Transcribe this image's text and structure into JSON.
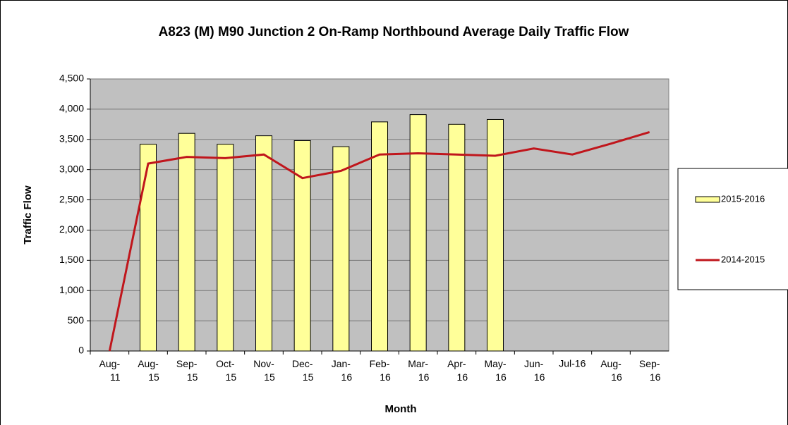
{
  "chart_data": {
    "type": "bar_line",
    "title": "A823 (M) M90 Junction 2 On-Ramp Northbound Average Daily Traffic Flow",
    "x_label": "Month",
    "y_label": "Traffic Flow",
    "categories": [
      "Aug-11",
      "Aug-15",
      "Sep-15",
      "Oct-15",
      "Nov-15",
      "Dec-15",
      "Jan-16",
      "Feb-16",
      "Mar-16",
      "Apr-16",
      "May-16",
      "Jun-16",
      "Jul-16",
      "Aug-16",
      "Sep-16"
    ],
    "series": [
      {
        "name": "2015-2016",
        "type": "bar",
        "color": "#ffff99",
        "values": [
          null,
          3420,
          3600,
          3420,
          3560,
          3480,
          3380,
          3790,
          3910,
          3750,
          3830,
          null,
          null,
          null,
          null
        ]
      },
      {
        "name": "2014-2015",
        "type": "line",
        "color": "#c0161c",
        "values": [
          0,
          3100,
          3210,
          3190,
          3250,
          2860,
          2980,
          3250,
          3270,
          3250,
          3230,
          3350,
          3250,
          3430,
          3620
        ]
      }
    ],
    "ylim": [
      0,
      4500
    ],
    "yticks": [
      0,
      500,
      {
        "value": 1000,
        "label": "1,000"
      },
      {
        "value": 1500,
        "label": "1,500"
      },
      {
        "value": 2000,
        "label": "2,000"
      },
      {
        "value": 2500,
        "label": "2,500"
      },
      {
        "value": 3000,
        "label": "3,000"
      },
      {
        "value": 3500,
        "label": "3,500"
      },
      {
        "value": 4000,
        "label": "4,000"
      },
      {
        "value": 4500,
        "label": "4,500"
      }
    ],
    "grid": true,
    "legend": "right"
  }
}
